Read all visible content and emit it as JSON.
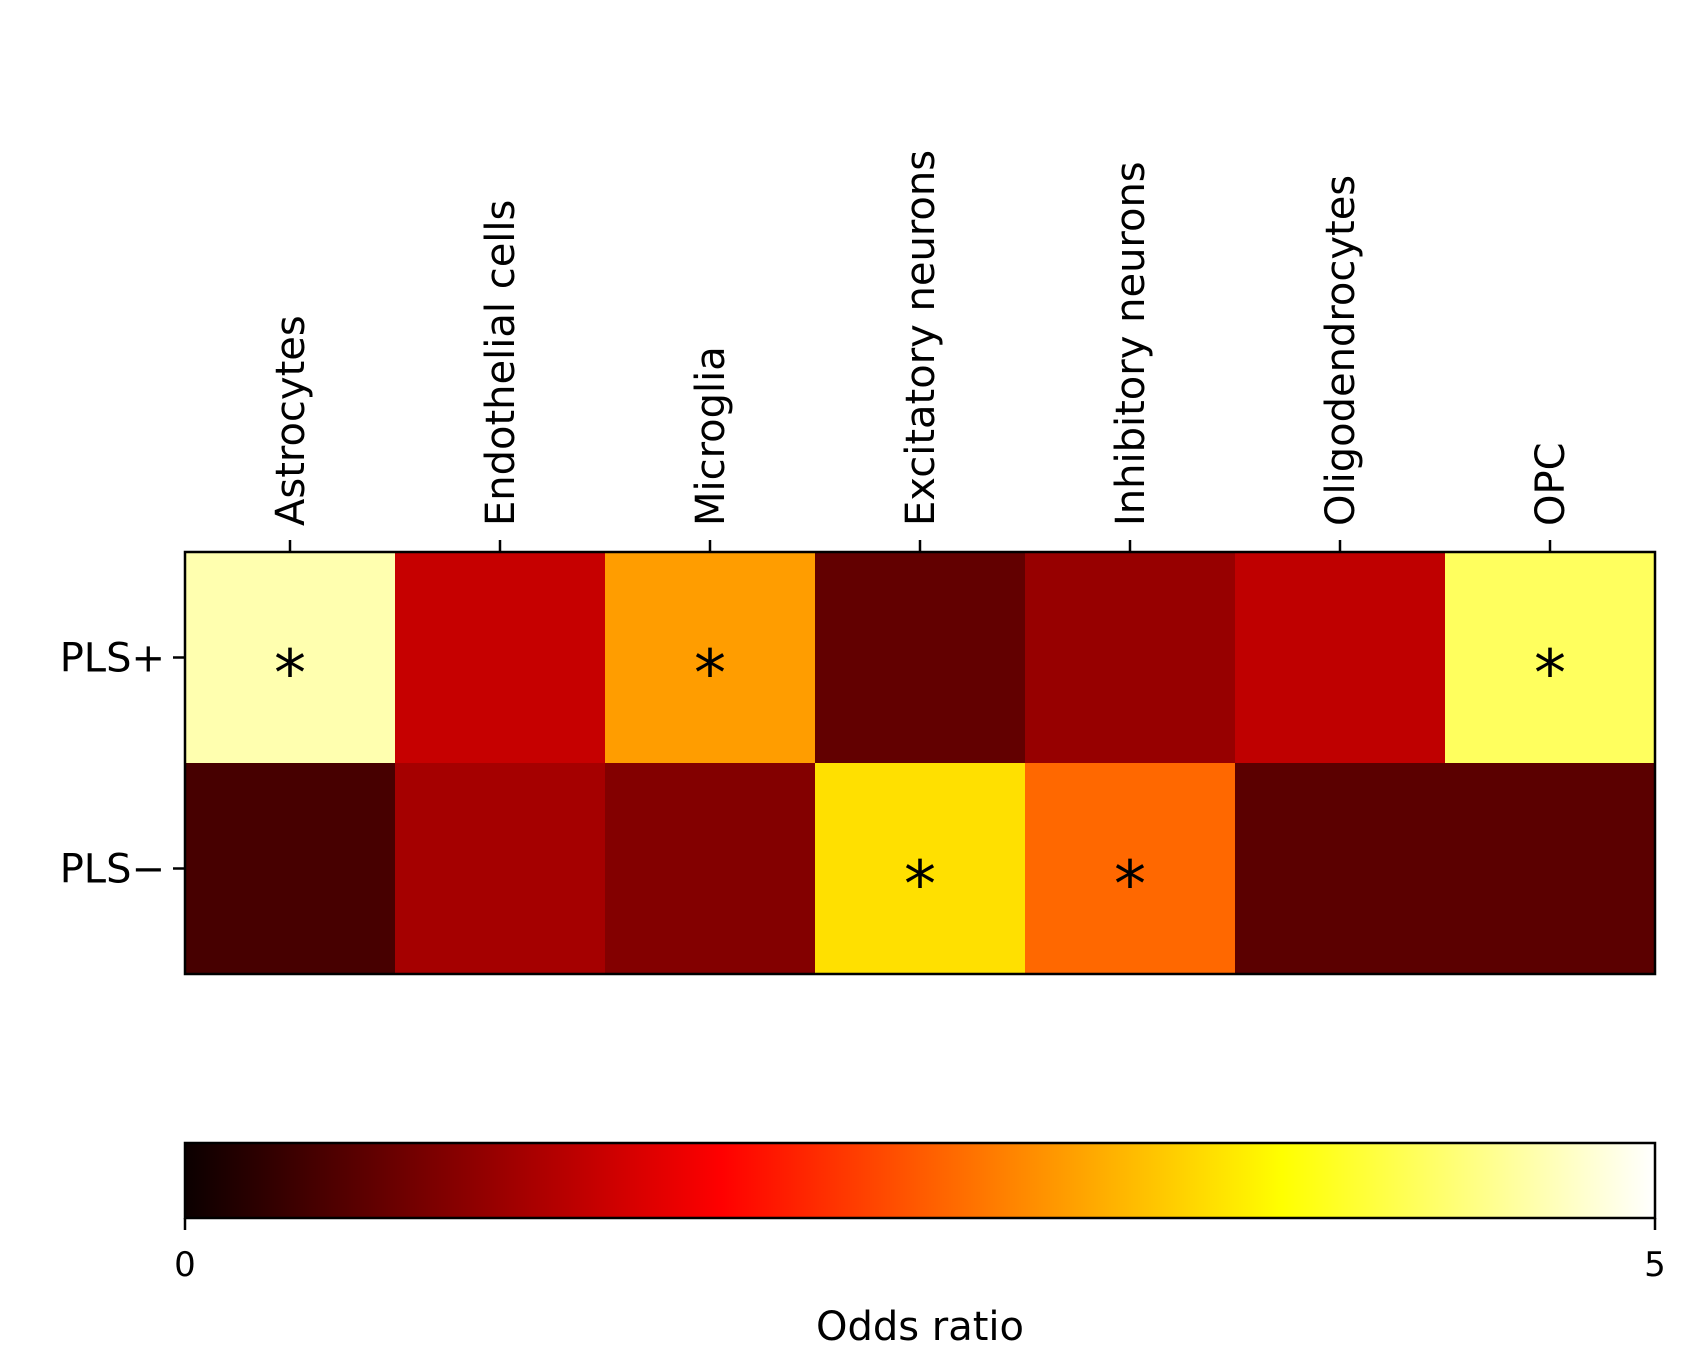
{
  "chart_data": {
    "type": "heatmap",
    "colormap": "hot",
    "columns": [
      "Astrocytes",
      "Endothelial cells",
      "Microglia",
      "Excitatory neurons",
      "Inhibitory neurons",
      "Oligodendrocytes",
      "OPC"
    ],
    "rows": [
      "PLS+",
      "PLS−"
    ],
    "values": [
      [
        4.6,
        1.4,
        3.0,
        0.65,
        1.05,
        1.35,
        4.2
      ],
      [
        0.45,
        1.15,
        0.9,
        3.5,
        2.6,
        0.6,
        0.6
      ]
    ],
    "significant": [
      [
        true,
        false,
        true,
        false,
        false,
        false,
        true
      ],
      [
        false,
        false,
        false,
        true,
        true,
        false,
        false
      ]
    ],
    "significance_marker": "*",
    "colorbar": {
      "label": "Odds ratio",
      "min": 0,
      "max": 5,
      "tick_labels": [
        "0",
        "5"
      ]
    }
  }
}
